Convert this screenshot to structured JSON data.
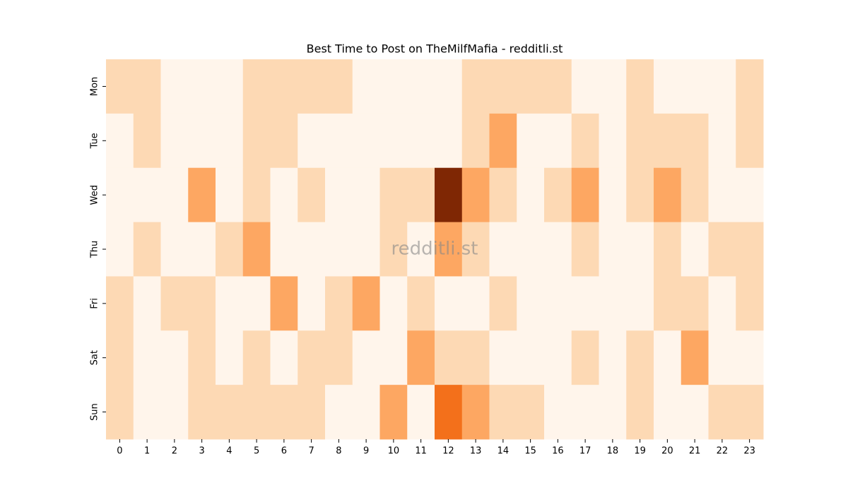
{
  "chart_data": {
    "type": "heatmap",
    "title": "Best Time to Post on TheMilfMafia - redditli.st",
    "watermark": "redditli.st",
    "columns": [
      0,
      1,
      2,
      3,
      4,
      5,
      6,
      7,
      8,
      9,
      10,
      11,
      12,
      13,
      14,
      15,
      16,
      17,
      18,
      19,
      20,
      21,
      22,
      23
    ],
    "rows": [
      "Mon",
      "Tue",
      "Wed",
      "Thu",
      "Fri",
      "Sat",
      "Sun"
    ],
    "values": [
      [
        1,
        1,
        0,
        0,
        0,
        1,
        1,
        1,
        1,
        0,
        0,
        0,
        0,
        1,
        1,
        1,
        1,
        0,
        0,
        1,
        0,
        0,
        0,
        1
      ],
      [
        0,
        1,
        0,
        0,
        0,
        1,
        1,
        0,
        0,
        0,
        0,
        0,
        0,
        1,
        2,
        0,
        0,
        1,
        0,
        1,
        1,
        1,
        0,
        1
      ],
      [
        0,
        0,
        0,
        2,
        0,
        1,
        0,
        1,
        0,
        0,
        1,
        1,
        4,
        2,
        1,
        0,
        1,
        2,
        0,
        1,
        2,
        1,
        0,
        0
      ],
      [
        0,
        1,
        0,
        0,
        1,
        2,
        0,
        0,
        0,
        0,
        1,
        0,
        2,
        1,
        0,
        0,
        0,
        1,
        0,
        0,
        1,
        0,
        1,
        1
      ],
      [
        1,
        0,
        1,
        1,
        0,
        0,
        2,
        0,
        1,
        2,
        0,
        1,
        0,
        0,
        1,
        0,
        0,
        0,
        0,
        0,
        1,
        1,
        0,
        1
      ],
      [
        1,
        0,
        0,
        1,
        0,
        1,
        0,
        1,
        1,
        0,
        0,
        2,
        1,
        1,
        0,
        0,
        0,
        1,
        0,
        1,
        0,
        2,
        0,
        0
      ],
      [
        1,
        0,
        0,
        1,
        1,
        1,
        1,
        1,
        0,
        0,
        2,
        0,
        3,
        2,
        1,
        1,
        0,
        0,
        0,
        1,
        0,
        0,
        1,
        1
      ]
    ],
    "colors": [
      "#fff5eb",
      "#fdd9b4",
      "#fda762",
      "#f3701b",
      "#7f2704"
    ]
  }
}
